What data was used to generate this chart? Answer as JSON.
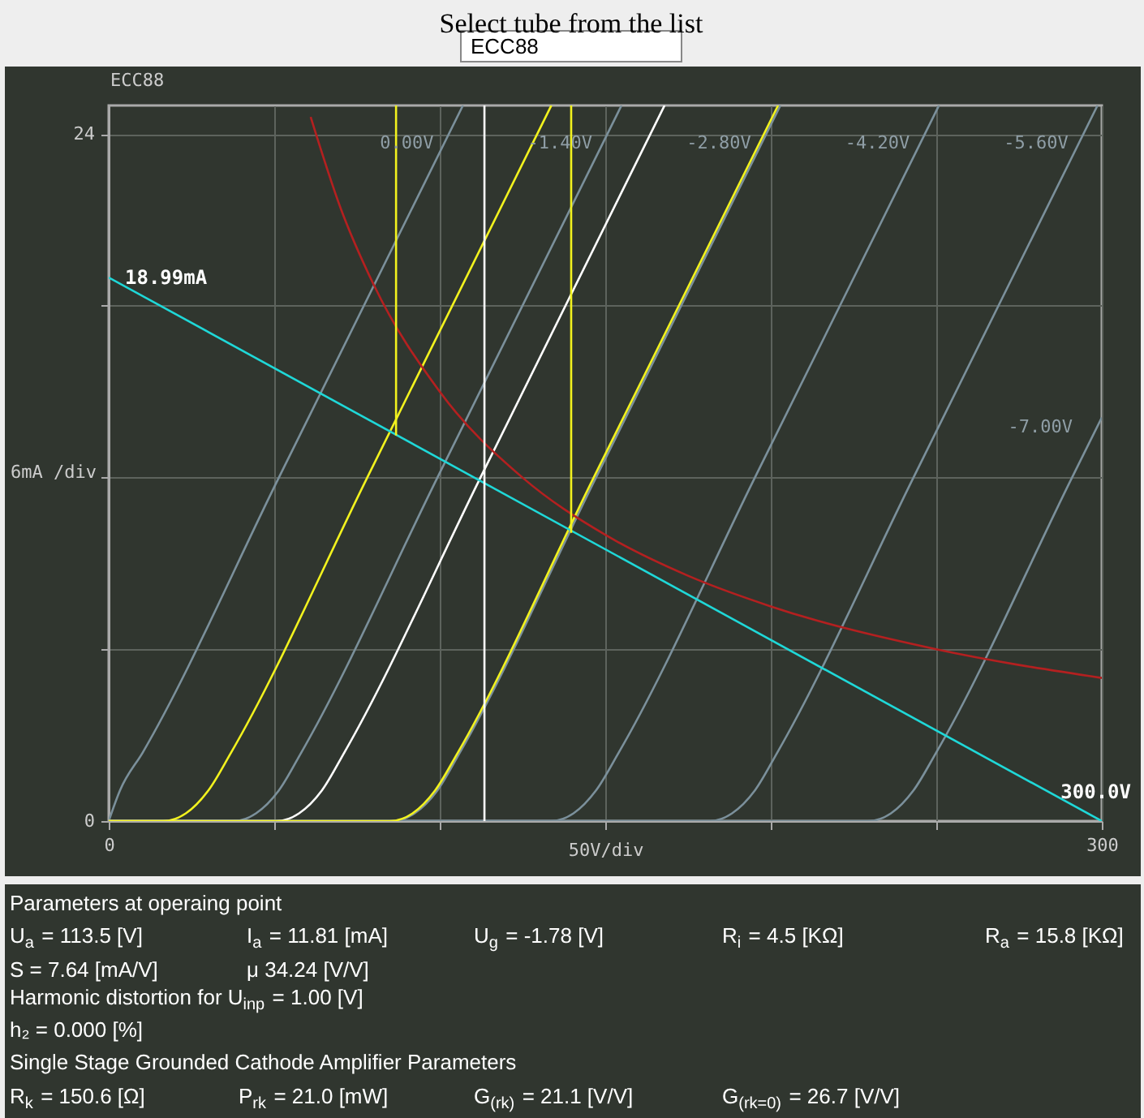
{
  "chart_data": {
    "type": "line",
    "title": "ECC88",
    "xlim": [
      0,
      300
    ],
    "ylim": [
      0,
      25
    ],
    "xlabel": "50V/div",
    "ylabel": "6mA /div",
    "xticks": [
      0,
      {
        "value": 50,
        "label": null
      },
      {
        "value": 100,
        "label": null
      },
      {
        "value": 150,
        "label": null
      },
      {
        "value": 200,
        "label": null
      },
      {
        "value": 250,
        "label": null
      },
      300
    ],
    "yticks": [
      0,
      {
        "value": 6,
        "label": null
      },
      {
        "value": 12,
        "label": null
      },
      {
        "value": 18,
        "label": null
      },
      24
    ],
    "grid": true,
    "series": [
      {
        "name": "0.00V",
        "color": "#7b909b",
        "x": [
          0,
          3.4,
          10.3,
          51.4,
          107.0
        ],
        "values": [
          0,
          1.07,
          2.4,
          12,
          25
        ]
      },
      {
        "name": "-1.40V",
        "color": "#7b909b",
        "x": [
          0,
          37.7,
          44.5,
          51.4,
          58.2,
          99.3,
          154.9
        ],
        "values": [
          0,
          0,
          0.27,
          1.07,
          2.4,
          12,
          25
        ]
      },
      {
        "name": "-2.80V",
        "color": "#7b909b",
        "x": [
          0,
          85.6,
          92.4,
          99.3,
          106.1,
          147.2,
          202.9
        ],
        "values": [
          0,
          0,
          0.27,
          1.07,
          2.4,
          12,
          25
        ]
      },
      {
        "name": "-4.20V",
        "color": "#7b909b",
        "x": [
          0,
          133.5,
          140.4,
          147.2,
          154.1,
          195.2,
          250.8
        ],
        "values": [
          0,
          0,
          0.27,
          1.07,
          2.4,
          12,
          25
        ]
      },
      {
        "name": "-5.60V",
        "color": "#7b909b",
        "x": [
          0,
          181.5,
          188.3,
          195.2,
          202.0,
          243.1,
          298.7
        ],
        "values": [
          0,
          0,
          0.27,
          1.07,
          2.4,
          12,
          25
        ]
      },
      {
        "name": "-7.00V",
        "color": "#7b909b",
        "x": [
          0,
          229.4,
          236.3,
          243.1,
          250.0,
          291.0,
          300
        ],
        "values": [
          0,
          0,
          0.27,
          1.07,
          2.4,
          12,
          14.1
        ]
      },
      {
        "color": "#f2f21e",
        "x": [
          0,
          16.4,
          23.3,
          30.1,
          37.0,
          78.1,
          133.7
        ],
        "values": [
          0,
          0,
          0.27,
          1.07,
          2.4,
          12,
          25
        ]
      },
      {
        "color": "#ffffff",
        "x": [
          0,
          50.7,
          57.5,
          64.4,
          71.2,
          112.3,
          167.9
        ],
        "values": [
          0,
          0,
          0.27,
          1.07,
          2.4,
          12,
          25
        ]
      },
      {
        "color": "#f2f21e",
        "x": [
          0,
          84.9,
          91.8,
          98.6,
          105.5,
          146.5,
          202.2
        ],
        "values": [
          0,
          0,
          0.27,
          1.07,
          2.4,
          12,
          25
        ]
      },
      {
        "color": "#b42020",
        "x": [
          61,
          70,
          80,
          100,
          125,
          150,
          175,
          200,
          250,
          300
        ],
        "values": [
          24.6,
          21.43,
          18.75,
          15,
          12,
          10,
          8.57,
          7.5,
          6,
          5
        ]
      },
      {
        "color": "#1fd8d8",
        "x": [
          0,
          300
        ],
        "values": [
          18.99,
          0
        ]
      },
      {
        "color": "#f2f21e",
        "x": [
          86.8,
          86.8
        ],
        "values": [
          13.47,
          25
        ]
      },
      {
        "color": "#f2f21e",
        "x": [
          139.7,
          139.7
        ],
        "values": [
          10.07,
          25
        ]
      }
    ],
    "ref_lines": [
      {
        "axis": "x",
        "value": 113.5,
        "color": "#ffffff"
      }
    ],
    "annotations": [
      "Select tube from the list",
      "ECC88",
      "Parameters at operaing point",
      "U$_{a}$ = 113.5 [V]",
      "I$_{a}$ = 11.81 [mA]",
      "U$_{g}$ = -1.78 [V]",
      "R$_{i}$ = 4.5 [KΩ]",
      "R$_{a}$ = 15.8 [KΩ]",
      "S = 7.64 [mA/V]",
      "μ 34.24 [V/V]",
      "Harmonic distortion for U$_{inp}$ = 1.00 [V]",
      "h₂ = 0.000 [%]",
      "Single Stage Grounded Cathode Amplifier Parameters",
      "R$_{k}$ = 150.6 [Ω]",
      "P$_{rk}$ = 21.0 [mW]",
      "G$_{(rk)}$ = 21.1 [V/V]",
      "G$_{(rk=0)}$ = 26.7 [V/V]",
      {
        "text": "18.99mA",
        "x": 0,
        "y": 18.99
      },
      {
        "text": "300.0V",
        "x": 300,
        "y": 0
      }
    ]
  }
}
